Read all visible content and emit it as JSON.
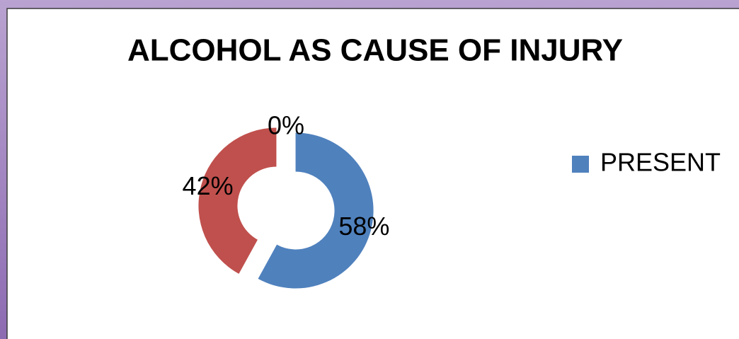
{
  "chart_data": {
    "type": "donut",
    "title": "ALCOHOL AS CAUSE OF INJURY",
    "categories": [
      "PRESENT",
      null,
      null
    ],
    "values": [
      58,
      42,
      0
    ],
    "value_labels": [
      "58%",
      "42%",
      "0%"
    ],
    "colors": [
      "#4f81bd",
      "#c0504d",
      "#9bbb59"
    ],
    "legend": "right"
  }
}
